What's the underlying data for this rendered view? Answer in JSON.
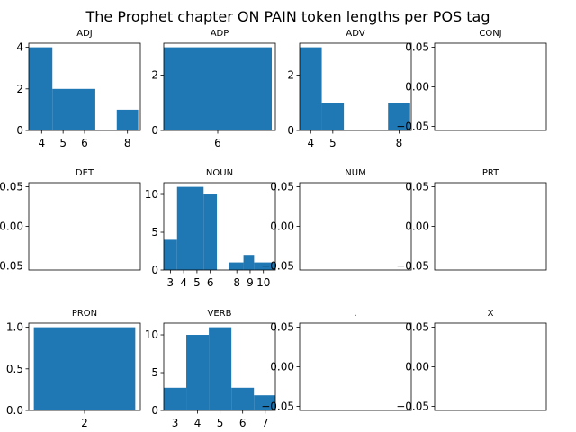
{
  "title": "The Prophet chapter ON PAIN token lengths per POS tag",
  "colors": {
    "bar": "#1f77b4",
    "axis": "#000000",
    "background": "#ffffff"
  },
  "chart_data": [
    {
      "type": "bar",
      "title": "ADJ",
      "xlim": [
        3.4,
        8.6
      ],
      "ylim": [
        0,
        4.2
      ],
      "xticks": [
        4,
        5,
        6,
        8
      ],
      "yticks": [
        0,
        2,
        4
      ],
      "bins": [
        [
          3.0,
          4.5,
          4
        ],
        [
          4.5,
          6.0,
          2
        ],
        [
          6.0,
          6.5,
          2
        ],
        [
          7.5,
          8.5,
          1
        ]
      ]
    },
    {
      "type": "bar",
      "title": "ADP",
      "xlim": [
        4.5,
        7.6
      ],
      "ylim": [
        0,
        3.15
      ],
      "xticks": [
        6
      ],
      "yticks": [
        0,
        2
      ],
      "bins": [
        [
          4.4,
          7.5,
          3
        ]
      ]
    },
    {
      "type": "bar",
      "title": "ADV",
      "xlim": [
        3.5,
        8.55
      ],
      "ylim": [
        0,
        3.15
      ],
      "xticks": [
        4,
        5,
        8
      ],
      "yticks": [
        0,
        2
      ],
      "bins": [
        [
          3.5,
          4.5,
          3
        ],
        [
          4.5,
          5.5,
          1
        ],
        [
          7.5,
          8.5,
          1
        ]
      ]
    },
    {
      "type": "bar",
      "title": "CONJ",
      "xlim": [
        0,
        1
      ],
      "ylim": [
        -0.055,
        0.055
      ],
      "xticks": [],
      "yticks": [
        0.05,
        0.0,
        -0.05
      ],
      "ytick_labels": [
        "0.05",
        "0.00",
        "−0.05"
      ],
      "bins": []
    },
    {
      "type": "bar",
      "title": "DET",
      "xlim": [
        0,
        1
      ],
      "ylim": [
        -0.055,
        0.055
      ],
      "xticks": [],
      "yticks": [
        0.05,
        0.0,
        -0.05
      ],
      "ytick_labels": [
        "0.05",
        "0.00",
        "−0.05"
      ],
      "bins": []
    },
    {
      "type": "bar",
      "title": "NOUN",
      "xlim": [
        2.5,
        10.9
      ],
      "ylim": [
        0,
        11.55
      ],
      "xticks": [
        3,
        4,
        5,
        6,
        8,
        9,
        10
      ],
      "yticks": [
        0,
        5,
        10
      ],
      "bins": [
        [
          2.5,
          3.5,
          4
        ],
        [
          3.5,
          5.5,
          11
        ],
        [
          5.5,
          6.5,
          10
        ],
        [
          7.4,
          8.5,
          1
        ],
        [
          8.5,
          9.3,
          2
        ],
        [
          9.3,
          10.9,
          1
        ]
      ]
    },
    {
      "type": "bar",
      "title": "NUM",
      "xlim": [
        0,
        1
      ],
      "ylim": [
        -0.055,
        0.055
      ],
      "xticks": [],
      "yticks": [
        0.05,
        0.0,
        -0.05
      ],
      "ytick_labels": [
        "0.05",
        "0.00",
        "−0.05"
      ],
      "bins": []
    },
    {
      "type": "bar",
      "title": "PRT",
      "xlim": [
        0,
        1
      ],
      "ylim": [
        -0.055,
        0.055
      ],
      "xticks": [],
      "yticks": [
        0.05,
        0.0,
        -0.05
      ],
      "ytick_labels": [
        "0.05",
        "0.00",
        "−0.05"
      ],
      "bins": []
    },
    {
      "type": "bar",
      "title": "PRON",
      "xlim": [
        1.45,
        2.55
      ],
      "ylim": [
        0,
        1.05
      ],
      "xticks": [
        2
      ],
      "yticks": [
        0.0,
        0.5,
        1.0
      ],
      "ytick_labels": [
        "0.0",
        "0.5",
        "1.0"
      ],
      "bins": [
        [
          1.5,
          2.5,
          1
        ]
      ]
    },
    {
      "type": "bar",
      "title": "VERB",
      "xlim": [
        2.5,
        7.45
      ],
      "ylim": [
        0,
        11.55
      ],
      "xticks": [
        3,
        4,
        5,
        6,
        7
      ],
      "yticks": [
        0,
        5,
        10
      ],
      "bins": [
        [
          2.5,
          3.5,
          3
        ],
        [
          3.5,
          4.5,
          10
        ],
        [
          4.5,
          5.5,
          11
        ],
        [
          5.5,
          6.5,
          3
        ],
        [
          6.5,
          7.5,
          2
        ]
      ]
    },
    {
      "type": "bar",
      "title": ".",
      "xlim": [
        0,
        1
      ],
      "ylim": [
        -0.055,
        0.055
      ],
      "xticks": [],
      "yticks": [
        0.05,
        0.0,
        -0.05
      ],
      "ytick_labels": [
        "0.05",
        "0.00",
        "−0.05"
      ],
      "bins": []
    },
    {
      "type": "bar",
      "title": "X",
      "xlim": [
        0,
        1
      ],
      "ylim": [
        -0.055,
        0.055
      ],
      "xticks": [],
      "yticks": [
        0.05,
        0.0,
        -0.05
      ],
      "ytick_labels": [
        "0.05",
        "0.00",
        "−0.05"
      ],
      "bins": []
    }
  ]
}
